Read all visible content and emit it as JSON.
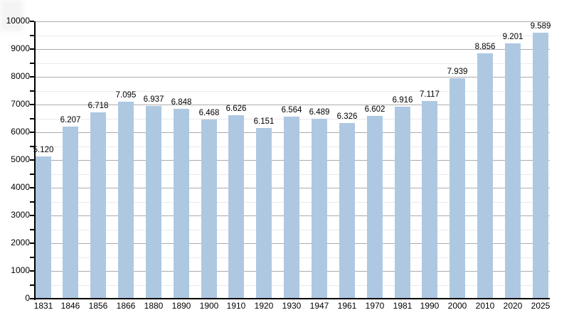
{
  "chart_title": "",
  "style": {
    "background_color": "#ffffff",
    "bar_color": "#aec8e2",
    "major_grid_color": "#ababab",
    "minor_grid_color": "#eaeaea",
    "axis_color": "#000000",
    "text_color": "#000000"
  },
  "chart_data": {
    "type": "bar",
    "title": "",
    "xlabel": "",
    "ylabel": "",
    "categories": [
      "1831",
      "1846",
      "1856",
      "1866",
      "1880",
      "1890",
      "1900",
      "1910",
      "1920",
      "1930",
      "1947",
      "1961",
      "1970",
      "1981",
      "1990",
      "2000",
      "2010",
      "2020",
      "2025"
    ],
    "values": [
      5120,
      6207,
      6718,
      7095,
      6937,
      6848,
      6468,
      6626,
      6151,
      6564,
      6489,
      6326,
      6602,
      6916,
      7117,
      7939,
      8856,
      9201,
      9589
    ],
    "value_labels": [
      "5.120",
      "6.207",
      "6.718",
      "7.095",
      "6.937",
      "6.848",
      "6.468",
      "6.626",
      "6.151",
      "6.564",
      "6.489",
      "6.326",
      "6.602",
      "6.916",
      "7.117",
      "7.939",
      "8.856",
      "9.201",
      "9.589"
    ],
    "ylim": [
      0,
      10000
    ],
    "y_major_step": 1000,
    "y_minor_step": 500,
    "y_tick_labels": [
      "0",
      "1000",
      "2000",
      "3000",
      "4000",
      "5000",
      "6000",
      "7000",
      "8000",
      "9000",
      "10000"
    ],
    "grid": "on",
    "legend": "none"
  }
}
